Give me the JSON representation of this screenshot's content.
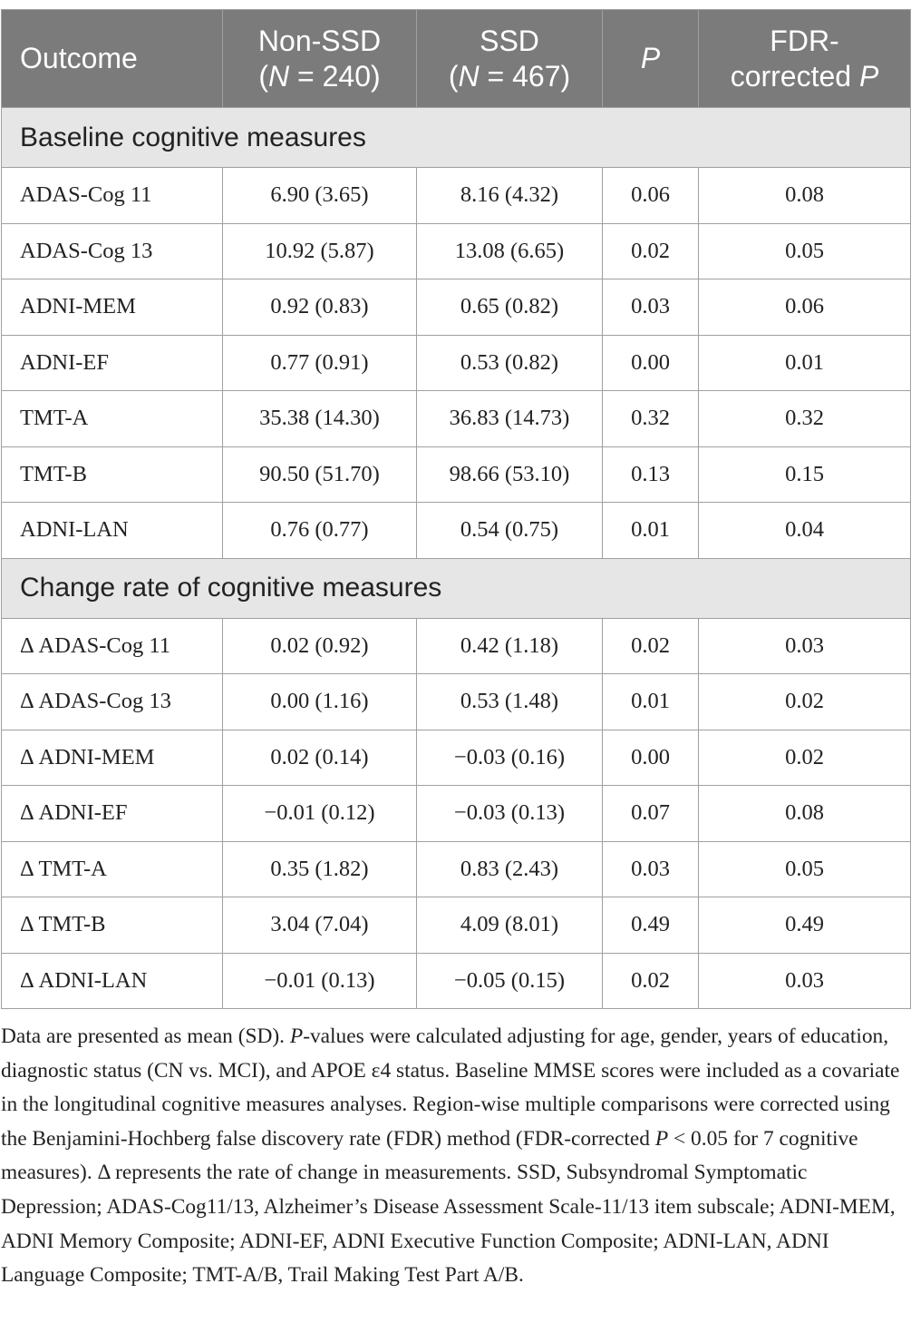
{
  "header": [
    [
      [
        {
          "t": "Outcome"
        }
      ]
    ],
    [
      [
        {
          "t": "Non-SSD"
        }
      ],
      [
        {
          "t": "("
        },
        {
          "t": "N",
          "i": true
        },
        {
          "t": " = 240)"
        }
      ]
    ],
    [
      [
        {
          "t": "SSD"
        }
      ],
      [
        {
          "t": "("
        },
        {
          "t": "N",
          "i": true
        },
        {
          "t": " = 467)"
        }
      ]
    ],
    [
      [
        {
          "t": "P",
          "i": true
        }
      ]
    ],
    [
      [
        {
          "t": "FDR-"
        }
      ],
      [
        {
          "t": "corrected "
        },
        {
          "t": "P",
          "i": true
        }
      ]
    ]
  ],
  "sections": [
    {
      "title": "Baseline cognitive measures",
      "rows": [
        [
          "ADAS-Cog 11",
          "6.90 (3.65)",
          "8.16 (4.32)",
          "0.06",
          "0.08"
        ],
        [
          "ADAS-Cog 13",
          "10.92 (5.87)",
          "13.08 (6.65)",
          "0.02",
          "0.05"
        ],
        [
          "ADNI-MEM",
          "0.92 (0.83)",
          "0.65 (0.82)",
          "0.03",
          "0.06"
        ],
        [
          "ADNI-EF",
          "0.77 (0.91)",
          "0.53 (0.82)",
          "0.00",
          "0.01"
        ],
        [
          "TMT-A",
          "35.38 (14.30)",
          "36.83 (14.73)",
          "0.32",
          "0.32"
        ],
        [
          "TMT-B",
          "90.50 (51.70)",
          "98.66 (53.10)",
          "0.13",
          "0.15"
        ],
        [
          "ADNI-LAN",
          "0.76 (0.77)",
          "0.54 (0.75)",
          "0.01",
          "0.04"
        ]
      ]
    },
    {
      "title": "Change rate of cognitive measures",
      "rows": [
        [
          "Δ ADAS-Cog 11",
          "0.02 (0.92)",
          "0.42 (1.18)",
          "0.02",
          "0.03"
        ],
        [
          "Δ ADAS-Cog 13",
          "0.00 (1.16)",
          "0.53 (1.48)",
          "0.01",
          "0.02"
        ],
        [
          "Δ ADNI-MEM",
          "0.02 (0.14)",
          "−0.03 (0.16)",
          "0.00",
          "0.02"
        ],
        [
          "Δ ADNI-EF",
          "−0.01 (0.12)",
          "−0.03 (0.13)",
          "0.07",
          "0.08"
        ],
        [
          "Δ TMT-A",
          "0.35 (1.82)",
          "0.83 (2.43)",
          "0.03",
          "0.05"
        ],
        [
          "Δ TMT-B",
          "3.04 (7.04)",
          "4.09 (8.01)",
          "0.49",
          "0.49"
        ],
        [
          "Δ ADNI-LAN",
          "−0.01 (0.13)",
          "−0.05 (0.15)",
          "0.02",
          "0.03"
        ]
      ]
    }
  ],
  "notes": [
    {
      "t": "Data are presented as mean (SD). "
    },
    {
      "t": "P",
      "i": true
    },
    {
      "t": "-values were calculated adjusting for age, gender, years of education, diagnostic status (CN vs. MCI), and APOE ε4 status. Baseline MMSE scores were included as a covariate in the longitudinal cognitive measures analyses. Region-wise multiple comparisons were corrected using the Benjamini-Hochberg false discovery rate (FDR) method (FDR-corrected "
    },
    {
      "t": "P",
      "i": true
    },
    {
      "t": " < 0.05 for 7 cognitive measures). Δ represents the rate of change in measurements. SSD, Subsyndromal Symptomatic Depression; ADAS-Cog11/13, Alzheimer’s Disease Assessment Scale-11/13 item subscale; ADNI-MEM, ADNI Memory Composite; ADNI-EF, ADNI Executive Function Composite; ADNI-LAN, ADNI Language Composite; TMT-A/B, Trail Making Test Part A/B."
    }
  ]
}
